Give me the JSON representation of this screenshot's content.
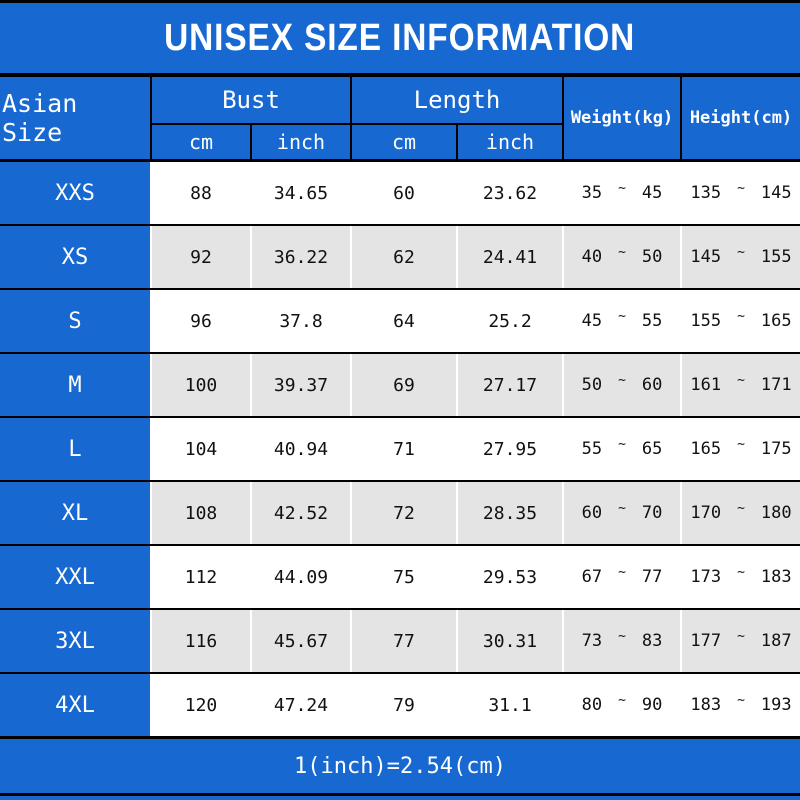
{
  "title": "UNISEX SIZE INFORMATION",
  "footer_note": "1(inch)=2.54(cm)",
  "symbols": {
    "range_separator": "~"
  },
  "colors": {
    "blue": "#1768d0",
    "row_alt_gray": "#e4e4e4",
    "line_black": "#000000",
    "text_light": "#ffffff",
    "text_dark": "#111111"
  },
  "chart_data": {
    "type": "table",
    "title": "UNISEX SIZE INFORMATION",
    "header": {
      "corner": "Asian Size",
      "bust": "Bust",
      "length": "Length",
      "cm": "cm",
      "inch": "inch",
      "weight": "Weight(kg)",
      "height": "Height(cm)"
    },
    "rows": [
      {
        "size": "XXS",
        "bust_cm": "88",
        "bust_inch": "34.65",
        "length_cm": "60",
        "length_inch": "23.62",
        "weight_kg": {
          "min": "35",
          "max": "45"
        },
        "height_cm": {
          "min": "135",
          "max": "145"
        }
      },
      {
        "size": "XS",
        "bust_cm": "92",
        "bust_inch": "36.22",
        "length_cm": "62",
        "length_inch": "24.41",
        "weight_kg": {
          "min": "40",
          "max": "50"
        },
        "height_cm": {
          "min": "145",
          "max": "155"
        }
      },
      {
        "size": "S",
        "bust_cm": "96",
        "bust_inch": "37.8",
        "length_cm": "64",
        "length_inch": "25.2",
        "weight_kg": {
          "min": "45",
          "max": "55"
        },
        "height_cm": {
          "min": "155",
          "max": "165"
        }
      },
      {
        "size": "M",
        "bust_cm": "100",
        "bust_inch": "39.37",
        "length_cm": "69",
        "length_inch": "27.17",
        "weight_kg": {
          "min": "50",
          "max": "60"
        },
        "height_cm": {
          "min": "161",
          "max": "171"
        }
      },
      {
        "size": "L",
        "bust_cm": "104",
        "bust_inch": "40.94",
        "length_cm": "71",
        "length_inch": "27.95",
        "weight_kg": {
          "min": "55",
          "max": "65"
        },
        "height_cm": {
          "min": "165",
          "max": "175"
        }
      },
      {
        "size": "XL",
        "bust_cm": "108",
        "bust_inch": "42.52",
        "length_cm": "72",
        "length_inch": "28.35",
        "weight_kg": {
          "min": "60",
          "max": "70"
        },
        "height_cm": {
          "min": "170",
          "max": "180"
        }
      },
      {
        "size": "XXL",
        "bust_cm": "112",
        "bust_inch": "44.09",
        "length_cm": "75",
        "length_inch": "29.53",
        "weight_kg": {
          "min": "67",
          "max": "77"
        },
        "height_cm": {
          "min": "173",
          "max": "183"
        }
      },
      {
        "size": "3XL",
        "bust_cm": "116",
        "bust_inch": "45.67",
        "length_cm": "77",
        "length_inch": "30.31",
        "weight_kg": {
          "min": "73",
          "max": "83"
        },
        "height_cm": {
          "min": "177",
          "max": "187"
        }
      },
      {
        "size": "4XL",
        "bust_cm": "120",
        "bust_inch": "47.24",
        "length_cm": "79",
        "length_inch": "31.1",
        "weight_kg": {
          "min": "80",
          "max": "90"
        },
        "height_cm": {
          "min": "183",
          "max": "193"
        }
      }
    ],
    "footnote": "1(inch)=2.54(cm)"
  }
}
